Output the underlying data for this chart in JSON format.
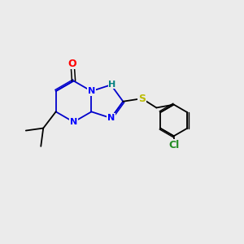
{
  "background_color": "#ebebeb",
  "bond_color": "#000000",
  "ring_bond_color": "#0000cc",
  "atom_colors": {
    "O": "#ff0000",
    "N": "#0000ff",
    "S": "#bbbb00",
    "H_label": "#008080",
    "Cl": "#228B22",
    "C": "#000000"
  },
  "figsize": [
    3.0,
    3.0
  ],
  "dpi": 100
}
